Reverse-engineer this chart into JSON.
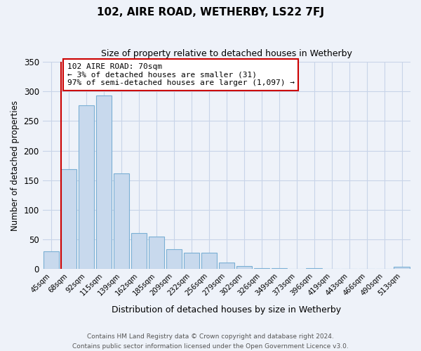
{
  "title": "102, AIRE ROAD, WETHERBY, LS22 7FJ",
  "subtitle": "Size of property relative to detached houses in Wetherby",
  "xlabel": "Distribution of detached houses by size in Wetherby",
  "ylabel": "Number of detached properties",
  "bar_labels": [
    "45sqm",
    "68sqm",
    "92sqm",
    "115sqm",
    "139sqm",
    "162sqm",
    "185sqm",
    "209sqm",
    "232sqm",
    "256sqm",
    "279sqm",
    "302sqm",
    "326sqm",
    "349sqm",
    "373sqm",
    "396sqm",
    "419sqm",
    "443sqm",
    "466sqm",
    "490sqm",
    "513sqm"
  ],
  "bar_values": [
    29,
    169,
    277,
    293,
    161,
    60,
    54,
    33,
    27,
    27,
    10,
    5,
    1,
    1,
    0,
    1,
    0,
    0,
    0,
    0,
    3
  ],
  "bar_color": "#c8d9ed",
  "bar_edge_color": "#7aafd4",
  "marker_line_color": "#cc0000",
  "annotation_text": "102 AIRE ROAD: 70sqm\n← 3% of detached houses are smaller (31)\n97% of semi-detached houses are larger (1,097) →",
  "annotation_box_edge_color": "#cc0000",
  "ylim": [
    0,
    350
  ],
  "yticks": [
    0,
    50,
    100,
    150,
    200,
    250,
    300,
    350
  ],
  "footer_line1": "Contains HM Land Registry data © Crown copyright and database right 2024.",
  "footer_line2": "Contains public sector information licensed under the Open Government Licence v3.0.",
  "bg_color": "#eef2f9",
  "grid_color": "#c8d4e8"
}
